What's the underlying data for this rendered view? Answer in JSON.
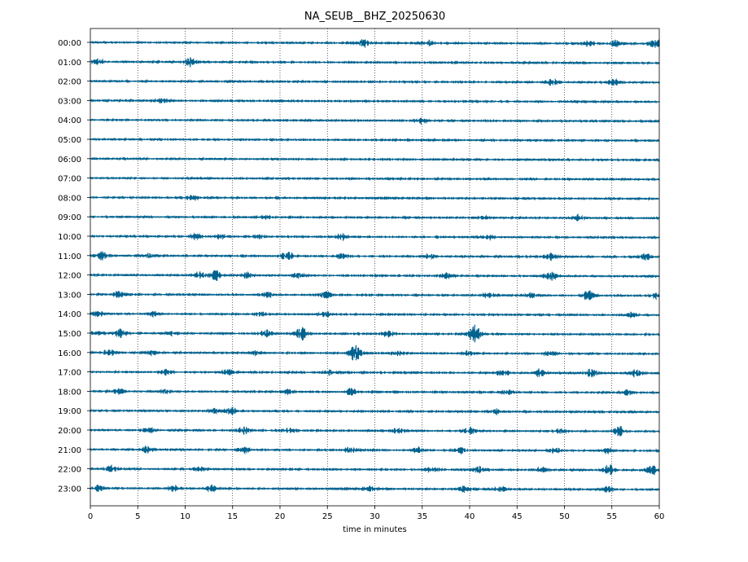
{
  "chart_data": {
    "type": "line",
    "title": "NA_SEUB__BHZ_20250630",
    "xlabel": "time in minutes",
    "ylabel": "",
    "xlim": [
      0,
      60
    ],
    "xticks": [
      "0",
      "5",
      "10",
      "15",
      "20",
      "25",
      "30",
      "35",
      "40",
      "45",
      "50",
      "55",
      "60"
    ],
    "grid": "vertical dotted",
    "trace_color": "#00628f",
    "series": [
      {
        "label": "00:00",
        "events": [
          [
            28.8,
            1.0
          ],
          [
            35.6,
            0.9
          ],
          [
            52.5,
            0.9
          ],
          [
            55.5,
            1.0
          ],
          [
            59.5,
            1.3
          ]
        ]
      },
      {
        "label": "01:00",
        "events": [
          [
            0.8,
            0.8
          ],
          [
            10.6,
            1.4
          ]
        ]
      },
      {
        "label": "02:00",
        "events": [
          [
            48.8,
            1.4
          ],
          [
            55.2,
            0.8
          ]
        ]
      },
      {
        "label": "03:00",
        "events": [
          [
            7.5,
            0.7
          ]
        ]
      },
      {
        "label": "04:00",
        "events": [
          [
            35.0,
            0.8
          ]
        ]
      },
      {
        "label": "05:00",
        "events": []
      },
      {
        "label": "06:00",
        "events": []
      },
      {
        "label": "07:00",
        "events": []
      },
      {
        "label": "08:00",
        "events": [
          [
            10.8,
            0.7
          ]
        ]
      },
      {
        "label": "09:00",
        "events": [
          [
            18.5,
            0.6
          ],
          [
            41.5,
            0.6
          ],
          [
            51.5,
            1.0
          ]
        ]
      },
      {
        "label": "10:00",
        "events": [
          [
            11.0,
            0.8
          ],
          [
            13.8,
            0.6
          ],
          [
            18.0,
            0.5
          ],
          [
            26.5,
            0.9
          ],
          [
            42.0,
            0.5
          ]
        ]
      },
      {
        "label": "11:00",
        "events": [
          [
            1.2,
            1.2
          ],
          [
            6.0,
            0.7
          ],
          [
            20.8,
            1.2
          ],
          [
            26.5,
            0.7
          ],
          [
            35.8,
            0.7
          ],
          [
            48.5,
            0.9
          ],
          [
            58.5,
            0.9
          ]
        ]
      },
      {
        "label": "12:00",
        "events": [
          [
            11.5,
            1.0
          ],
          [
            13.2,
            1.6
          ],
          [
            16.5,
            0.8
          ],
          [
            22.0,
            0.8
          ],
          [
            37.5,
            0.8
          ],
          [
            48.5,
            1.3
          ]
        ]
      },
      {
        "label": "13:00",
        "events": [
          [
            3.0,
            0.9
          ],
          [
            18.8,
            0.7
          ],
          [
            24.8,
            0.9
          ],
          [
            42.0,
            0.6
          ],
          [
            46.5,
            0.9
          ],
          [
            52.6,
            1.6
          ],
          [
            59.5,
            0.8
          ]
        ]
      },
      {
        "label": "14:00",
        "events": [
          [
            0.8,
            0.9
          ],
          [
            6.8,
            0.7
          ],
          [
            18.0,
            0.6
          ],
          [
            24.8,
            0.8
          ],
          [
            57.0,
            0.7
          ]
        ]
      },
      {
        "label": "15:00",
        "events": [
          [
            0.5,
            0.6
          ],
          [
            3.2,
            1.2
          ],
          [
            8.5,
            0.8
          ],
          [
            18.5,
            1.0
          ],
          [
            22.2,
            2.0
          ],
          [
            31.5,
            0.9
          ],
          [
            40.5,
            3.2
          ]
        ]
      },
      {
        "label": "16:00",
        "events": [
          [
            2.0,
            0.9
          ],
          [
            6.5,
            0.6
          ],
          [
            17.5,
            0.6
          ],
          [
            28.0,
            2.6
          ],
          [
            32.5,
            0.6
          ],
          [
            39.8,
            0.6
          ],
          [
            48.5,
            0.6
          ]
        ]
      },
      {
        "label": "17:00",
        "events": [
          [
            8.0,
            1.0
          ],
          [
            14.5,
            0.7
          ],
          [
            25.5,
            1.0
          ],
          [
            43.5,
            1.0
          ],
          [
            47.5,
            1.4
          ],
          [
            52.8,
            1.4
          ],
          [
            57.5,
            1.1
          ]
        ]
      },
      {
        "label": "18:00",
        "events": [
          [
            3.0,
            0.7
          ],
          [
            8.0,
            0.6
          ],
          [
            20.8,
            0.6
          ],
          [
            27.5,
            0.9
          ],
          [
            44.0,
            0.7
          ],
          [
            56.5,
            0.7
          ]
        ]
      },
      {
        "label": "19:00",
        "events": [
          [
            13.0,
            0.7
          ],
          [
            14.8,
            1.0
          ],
          [
            42.6,
            1.1
          ]
        ]
      },
      {
        "label": "20:00",
        "events": [
          [
            6.2,
            0.8
          ],
          [
            16.2,
            1.2
          ],
          [
            21.0,
            0.7
          ],
          [
            32.5,
            0.9
          ],
          [
            40.0,
            1.0
          ],
          [
            49.5,
            0.8
          ],
          [
            55.8,
            1.4
          ]
        ]
      },
      {
        "label": "21:00",
        "events": [
          [
            6.0,
            1.0
          ],
          [
            16.2,
            1.0
          ],
          [
            27.5,
            0.9
          ],
          [
            34.5,
            0.7
          ],
          [
            39.0,
            0.8
          ],
          [
            49.0,
            0.8
          ],
          [
            54.5,
            0.7
          ]
        ]
      },
      {
        "label": "22:00",
        "events": [
          [
            2.2,
            0.9
          ],
          [
            11.5,
            0.6
          ],
          [
            36.0,
            0.8
          ],
          [
            41.0,
            0.9
          ],
          [
            47.5,
            0.6
          ],
          [
            54.8,
            1.4
          ],
          [
            59.2,
            1.3
          ]
        ]
      },
      {
        "label": "23:00",
        "events": [
          [
            0.8,
            0.8
          ],
          [
            8.8,
            0.8
          ],
          [
            12.8,
            0.8
          ],
          [
            29.5,
            0.6
          ],
          [
            39.5,
            0.9
          ],
          [
            43.2,
            0.7
          ],
          [
            54.5,
            0.8
          ]
        ]
      }
    ]
  }
}
